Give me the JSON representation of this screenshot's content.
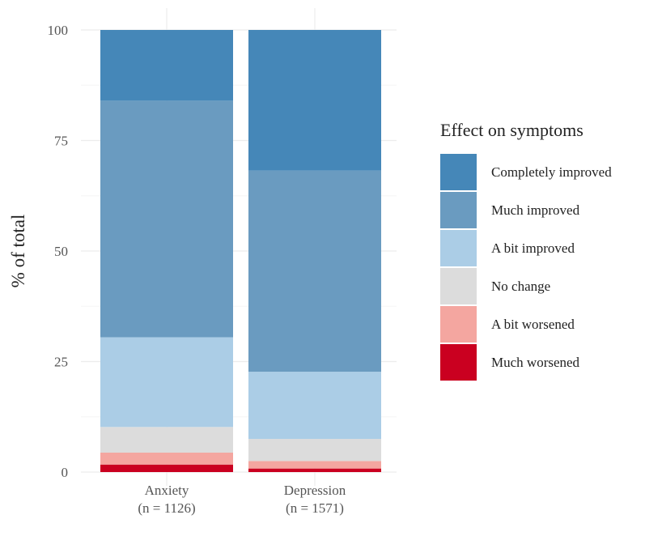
{
  "chart_data": {
    "type": "bar",
    "stacked": true,
    "categories": [
      "Anxiety\n(n = 1126)",
      "Depression\n(n = 1571)"
    ],
    "category_lines": [
      [
        "Anxiety",
        "(n = 1126)"
      ],
      [
        "Depression",
        "(n = 1571)"
      ]
    ],
    "ylabel": "% of total",
    "xlabel": "",
    "ylim": [
      0,
      100
    ],
    "yticks": [
      0,
      25,
      50,
      75,
      100
    ],
    "grid": true,
    "legend": {
      "title": "Effect on symptoms",
      "placement": "right"
    },
    "series": [
      {
        "name": "Much worsened",
        "color": "#ca0020",
        "values": [
          1.7,
          0.8
        ]
      },
      {
        "name": "A bit worsened",
        "color": "#f4a6a0",
        "values": [
          2.7,
          1.7
        ]
      },
      {
        "name": "No change",
        "color": "#dcdcdc",
        "values": [
          5.8,
          5.0
        ]
      },
      {
        "name": "A bit improved",
        "color": "#abcde6",
        "values": [
          20.3,
          15.2
        ]
      },
      {
        "name": "Much improved",
        "color": "#6a9bc0",
        "values": [
          53.5,
          45.5
        ]
      },
      {
        "name": "Completely improved",
        "color": "#4587b8",
        "values": [
          16.0,
          31.8
        ]
      }
    ],
    "legend_order": [
      "Completely improved",
      "Much improved",
      "A bit improved",
      "No change",
      "A bit worsened",
      "Much worsened"
    ]
  }
}
